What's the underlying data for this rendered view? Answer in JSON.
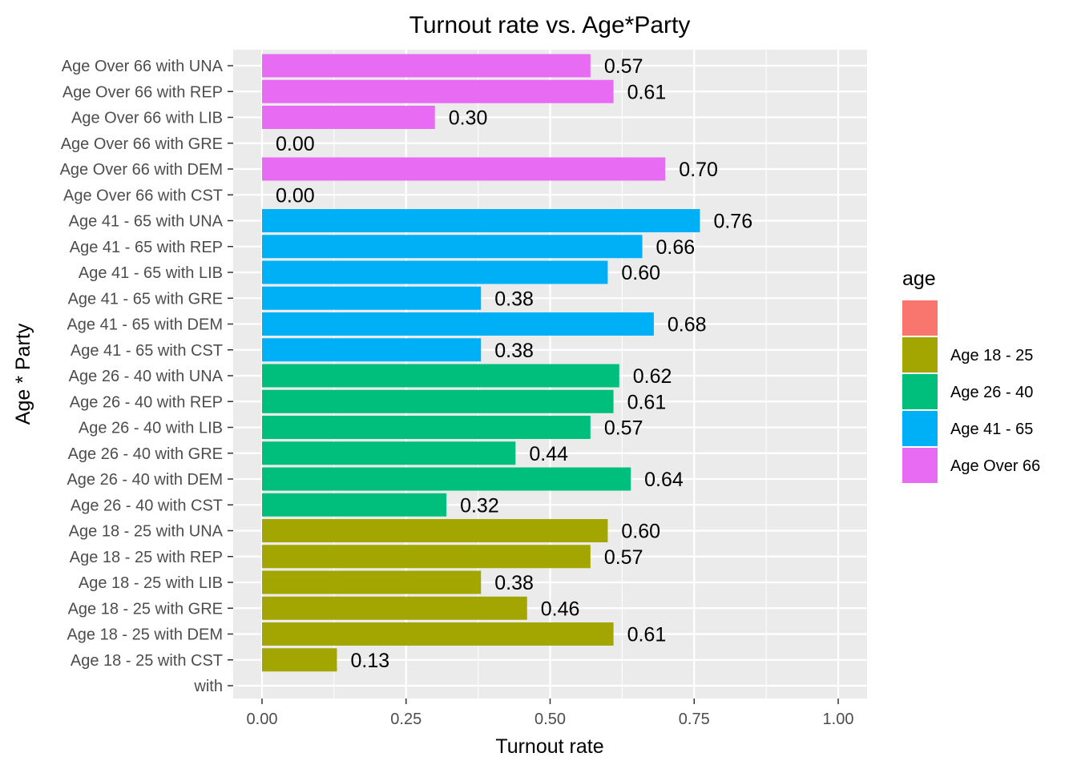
{
  "chart_data": {
    "type": "bar",
    "orientation": "horizontal",
    "title": "Turnout rate vs. Age*Party",
    "xlabel": "Turnout rate",
    "ylabel": "Age * Party",
    "xlim": [
      0,
      1
    ],
    "x_ticks": [
      "0.00",
      "0.25",
      "0.50",
      "0.75",
      "1.00"
    ],
    "grid": true,
    "legend_position": "right",
    "legend": {
      "title": "age",
      "items": [
        {
          "label": "",
          "color": "#F8766D"
        },
        {
          "label": "Age 18 - 25",
          "color": "#A3A500"
        },
        {
          "label": "Age 26 - 40",
          "color": "#00BF7D"
        },
        {
          "label": "Age 41 - 65",
          "color": "#00B0F6"
        },
        {
          "label": "Age Over 66",
          "color": "#E76BF3"
        }
      ]
    },
    "bars": [
      {
        "category": "Age Over 66 with UNA",
        "value": 0.57,
        "label": "0.57",
        "group": "Age Over 66"
      },
      {
        "category": "Age Over 66 with REP",
        "value": 0.61,
        "label": "0.61",
        "group": "Age Over 66"
      },
      {
        "category": "Age Over 66 with LIB",
        "value": 0.3,
        "label": "0.30",
        "group": "Age Over 66"
      },
      {
        "category": "Age Over 66 with GRE",
        "value": 0.0,
        "label": "0.00",
        "group": "Age Over 66"
      },
      {
        "category": "Age Over 66 with DEM",
        "value": 0.7,
        "label": "0.70",
        "group": "Age Over 66"
      },
      {
        "category": "Age Over 66 with CST",
        "value": 0.0,
        "label": "0.00",
        "group": "Age Over 66"
      },
      {
        "category": "Age 41 - 65 with UNA",
        "value": 0.76,
        "label": "0.76",
        "group": "Age 41 - 65"
      },
      {
        "category": "Age 41 - 65 with REP",
        "value": 0.66,
        "label": "0.66",
        "group": "Age 41 - 65"
      },
      {
        "category": "Age 41 - 65 with LIB",
        "value": 0.6,
        "label": "0.60",
        "group": "Age 41 - 65"
      },
      {
        "category": "Age 41 - 65 with GRE",
        "value": 0.38,
        "label": "0.38",
        "group": "Age 41 - 65"
      },
      {
        "category": "Age 41 - 65 with DEM",
        "value": 0.68,
        "label": "0.68",
        "group": "Age 41 - 65"
      },
      {
        "category": "Age 41 - 65 with CST",
        "value": 0.38,
        "label": "0.38",
        "group": "Age 41 - 65"
      },
      {
        "category": "Age 26 - 40 with UNA",
        "value": 0.62,
        "label": "0.62",
        "group": "Age 26 - 40"
      },
      {
        "category": "Age 26 - 40 with REP",
        "value": 0.61,
        "label": "0.61",
        "group": "Age 26 - 40"
      },
      {
        "category": "Age 26 - 40 with LIB",
        "value": 0.57,
        "label": "0.57",
        "group": "Age 26 - 40"
      },
      {
        "category": "Age 26 - 40 with GRE",
        "value": 0.44,
        "label": "0.44",
        "group": "Age 26 - 40"
      },
      {
        "category": "Age 26 - 40 with DEM",
        "value": 0.64,
        "label": "0.64",
        "group": "Age 26 - 40"
      },
      {
        "category": "Age 26 - 40 with CST",
        "value": 0.32,
        "label": "0.32",
        "group": "Age 26 - 40"
      },
      {
        "category": "Age 18 - 25 with UNA",
        "value": 0.6,
        "label": "0.60",
        "group": "Age 18 - 25"
      },
      {
        "category": "Age 18 - 25 with REP",
        "value": 0.57,
        "label": "0.57",
        "group": "Age 18 - 25"
      },
      {
        "category": "Age 18 - 25 with LIB",
        "value": 0.38,
        "label": "0.38",
        "group": "Age 18 - 25"
      },
      {
        "category": "Age 18 - 25 with GRE",
        "value": 0.46,
        "label": "0.46",
        "group": "Age 18 - 25"
      },
      {
        "category": "Age 18 - 25 with DEM",
        "value": 0.61,
        "label": "0.61",
        "group": "Age 18 - 25"
      },
      {
        "category": "Age 18 - 25 with CST",
        "value": 0.13,
        "label": "0.13",
        "group": "Age 18 - 25"
      },
      {
        "category": "with",
        "value": null,
        "label": null,
        "group": ""
      }
    ]
  }
}
